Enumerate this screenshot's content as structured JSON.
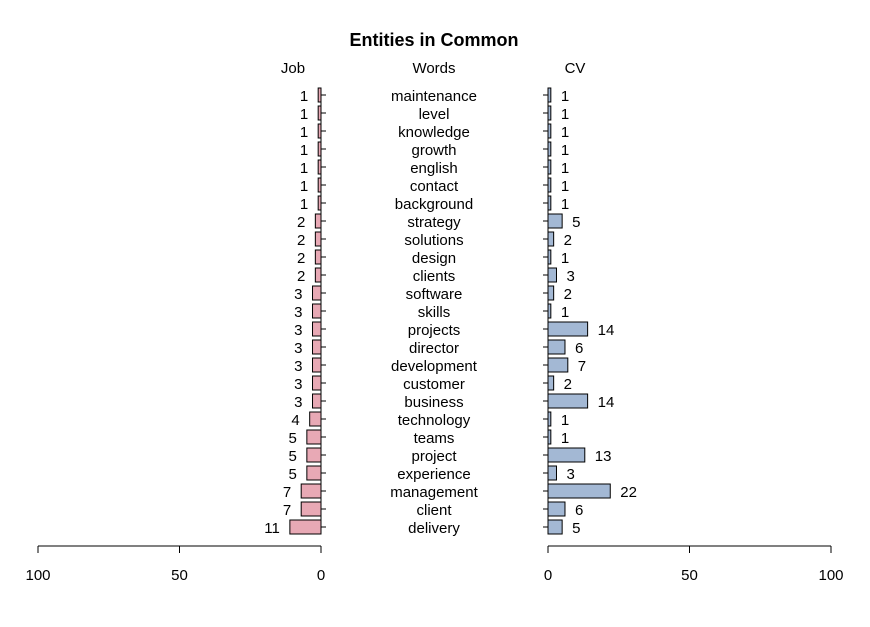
{
  "chart_data": {
    "type": "bar",
    "title": "Entities in Common",
    "left_label": "Job",
    "center_label": "Words",
    "right_label": "CV",
    "categories": [
      "maintenance",
      "level",
      "knowledge",
      "growth",
      "english",
      "contact",
      "background",
      "strategy",
      "solutions",
      "design",
      "clients",
      "software",
      "skills",
      "projects",
      "director",
      "development",
      "customer",
      "business",
      "technology",
      "teams",
      "project",
      "experience",
      "management",
      "client",
      "delivery"
    ],
    "series": [
      {
        "name": "Job",
        "values": [
          1,
          1,
          1,
          1,
          1,
          1,
          1,
          2,
          2,
          2,
          2,
          3,
          3,
          3,
          3,
          3,
          3,
          3,
          4,
          5,
          5,
          5,
          7,
          7,
          11
        ]
      },
      {
        "name": "CV",
        "values": [
          1,
          1,
          1,
          1,
          1,
          1,
          1,
          5,
          2,
          1,
          3,
          2,
          1,
          14,
          6,
          7,
          2,
          14,
          1,
          1,
          13,
          3,
          22,
          6,
          5
        ]
      }
    ],
    "xlim": [
      0,
      100
    ],
    "ticks": [
      "100",
      "50",
      "0"
    ],
    "ticks_right": [
      "0",
      "50",
      "100"
    ],
    "colors": {
      "job": "#e8a9b5",
      "cv": "#a3b8d4",
      "stroke": "#000000"
    }
  }
}
